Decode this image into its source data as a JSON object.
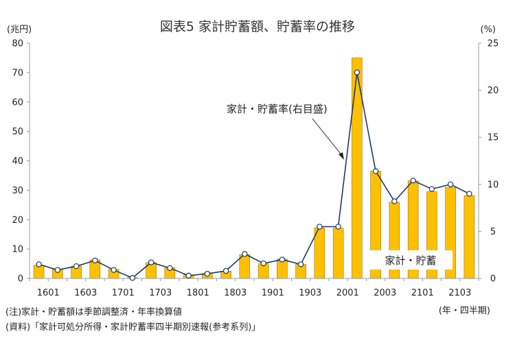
{
  "chart_data": {
    "type": "bar+line",
    "title": "図表5 家計貯蓄額、貯蓄率の推移",
    "y_left_unit": "(兆円)",
    "y_right_unit": "(%)",
    "x_unit": "(年・四半期)",
    "y_left_ticks": [
      "0",
      "10",
      "20",
      "30",
      "40",
      "50",
      "60",
      "70",
      "80"
    ],
    "y_right_ticks": [
      "0",
      "5",
      "10",
      "15",
      "20",
      "25"
    ],
    "ylim_left": [
      0,
      80
    ],
    "ylim_right": [
      0,
      25
    ],
    "x_tick_labels": [
      "1601",
      "1603",
      "1701",
      "1703",
      "1801",
      "1803",
      "1901",
      "1903",
      "2001",
      "2003",
      "2101",
      "2103"
    ],
    "categories": [
      "1601",
      "1602",
      "1603",
      "1604",
      "1701",
      "1702",
      "1703",
      "1704",
      "1801",
      "1802",
      "1803",
      "1804",
      "1901",
      "1902",
      "1903",
      "1904",
      "2001",
      "2002",
      "2003",
      "2004",
      "2101",
      "2102",
      "2103",
      "2104"
    ],
    "series": [
      {
        "name": "家計・貯蓄",
        "type": "bar",
        "axis": "left",
        "color": "#FFC000",
        "values": [
          4.5,
          3.1,
          4.2,
          6.3,
          3.1,
          0.3,
          5.4,
          3.7,
          1.2,
          1.7,
          2.5,
          8.1,
          5.0,
          6.6,
          4.8,
          17.2,
          17.1,
          75.0,
          36.5,
          25.9,
          33.2,
          29.5,
          31.0,
          28.2
        ]
      },
      {
        "name": "家計・貯蓄率(右目盛)",
        "type": "line",
        "axis": "right",
        "color": "#1F3864",
        "values": [
          1.5,
          0.9,
          1.3,
          1.9,
          0.9,
          0.05,
          1.7,
          1.1,
          0.3,
          0.5,
          0.8,
          2.6,
          1.6,
          2.0,
          1.5,
          5.5,
          5.5,
          21.9,
          11.4,
          8.2,
          10.4,
          9.5,
          10.0,
          9.0
        ]
      }
    ]
  },
  "notes": {
    "note1": "(注)家計・貯蓄額は季節調整済・年率換算値",
    "note2": "(資料)「家計可処分所得・家計貯蓄率四半期別速報(参考系列)」"
  }
}
